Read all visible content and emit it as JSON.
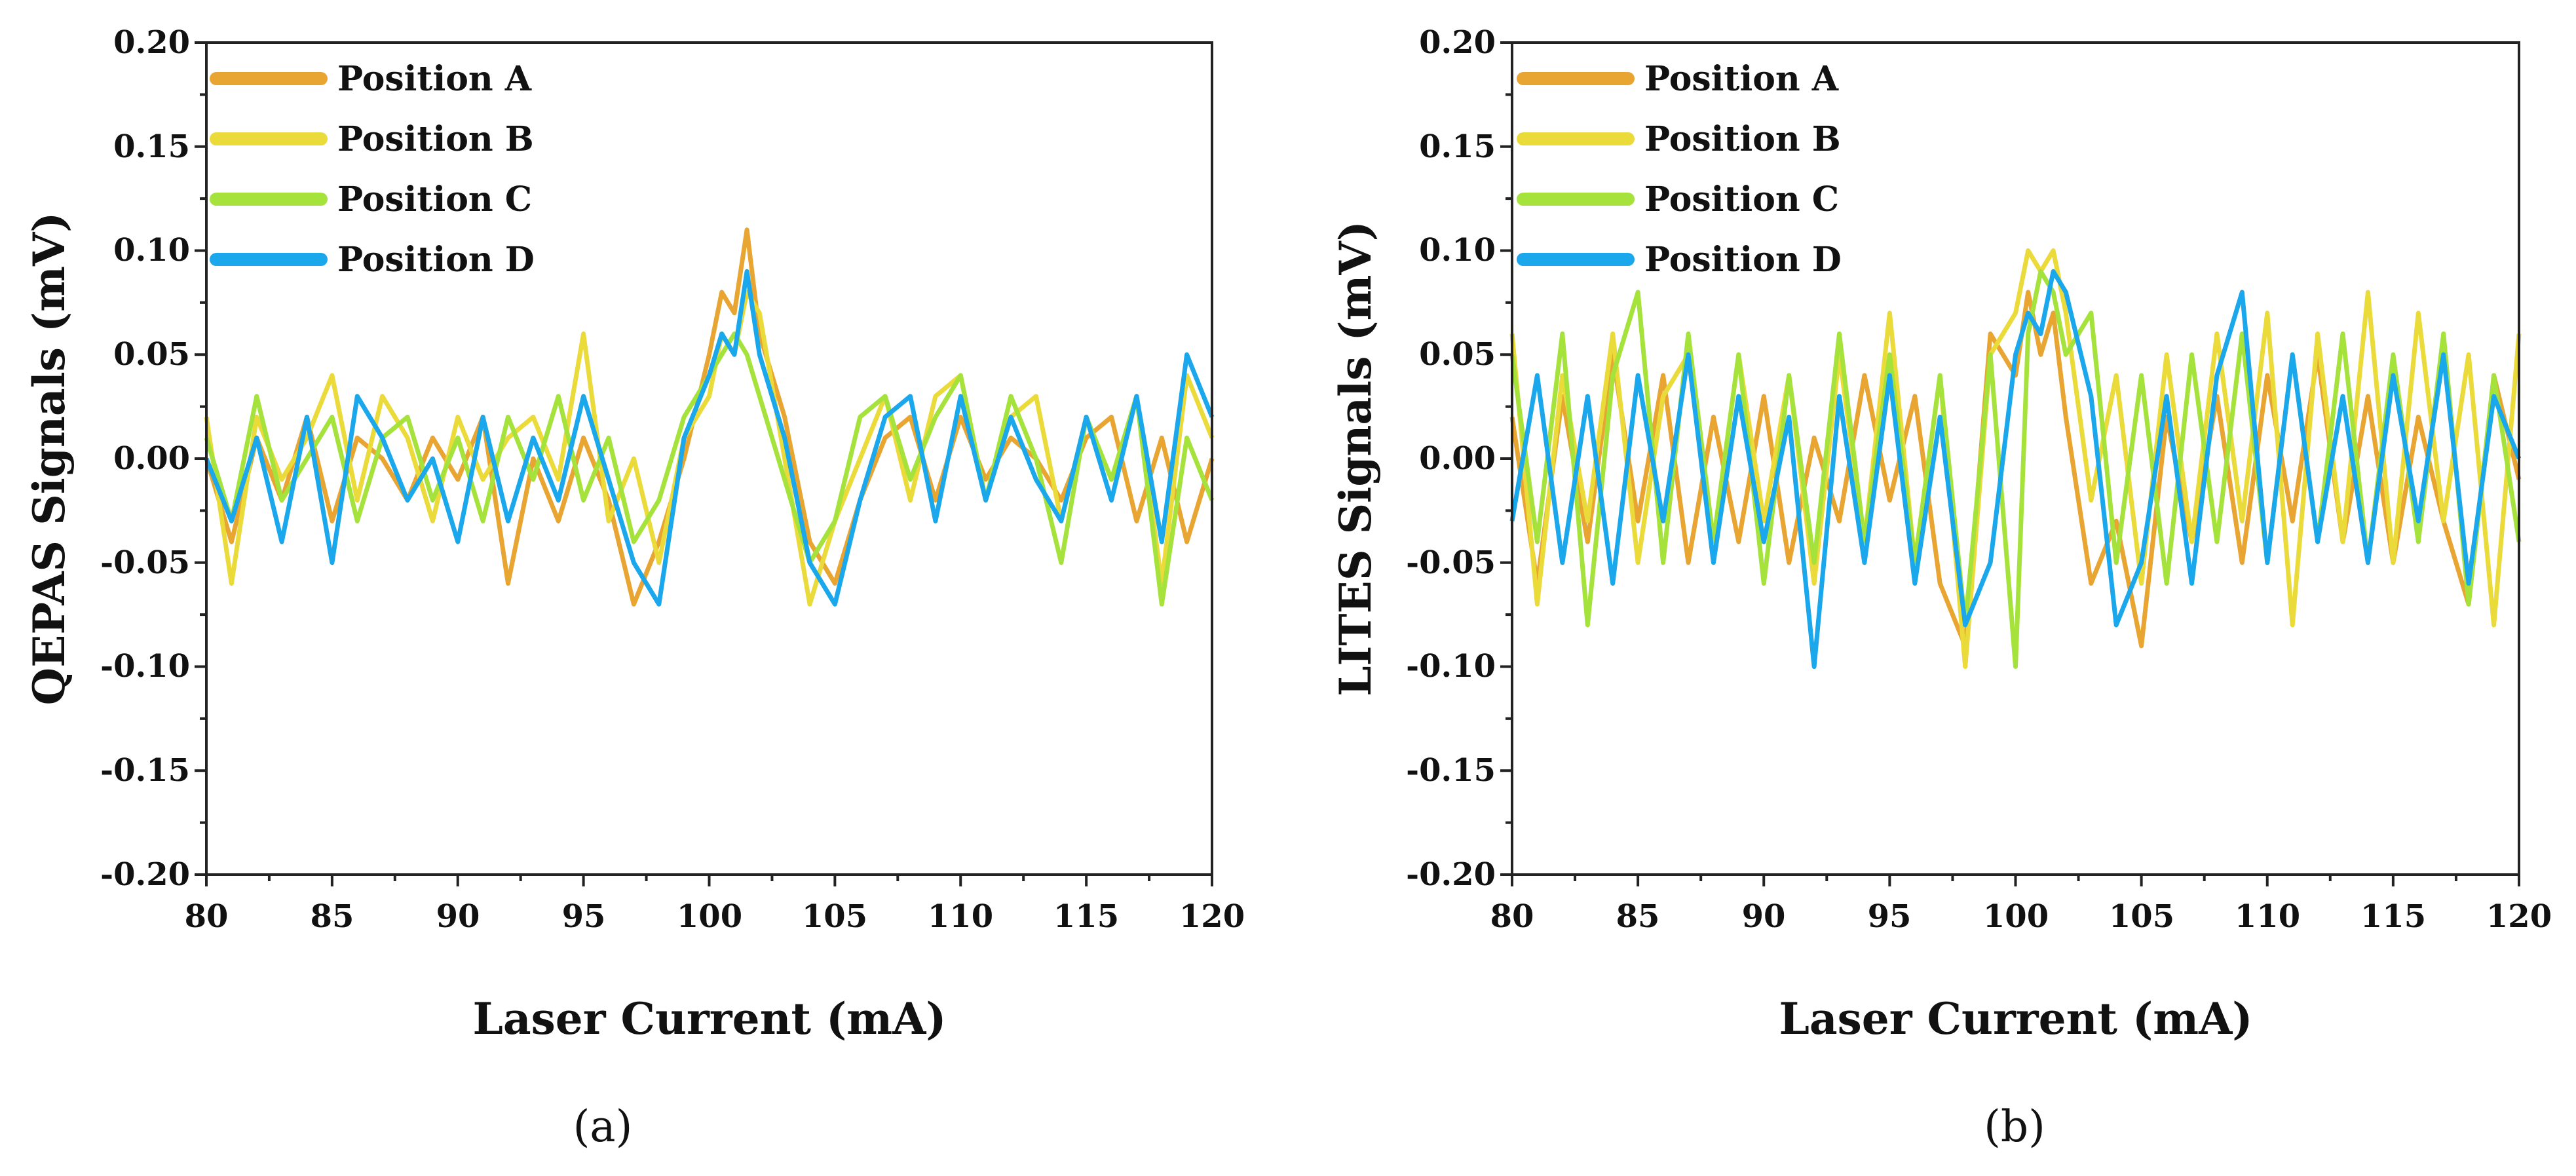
{
  "figure": {
    "colors": {
      "Position A": "#E8A531",
      "Position B": "#EBDB3A",
      "Position C": "#A6E23C",
      "Position D": "#1AA7EC"
    }
  },
  "chart_data": [
    {
      "type": "line",
      "panel_label": "(a)",
      "ylabel": "QEPAS Signals (mV)",
      "xlabel": "Laser Current (mA)",
      "xlim": [
        80,
        120
      ],
      "ylim": [
        -0.2,
        0.2
      ],
      "xticks": [
        "80",
        "85",
        "90",
        "95",
        "100",
        "105",
        "110",
        "115",
        "120"
      ],
      "yticks": [
        "0.20",
        "0.15",
        "0.10",
        "0.05",
        "0.00",
        "-0.05",
        "-0.10",
        "-0.15",
        "-0.20"
      ],
      "legend": {
        "placement": "top-left",
        "entries": [
          "Position A",
          "Position B",
          "Position C",
          "Position D"
        ]
      },
      "x": [
        80,
        81,
        82,
        83,
        84,
        85,
        86,
        87,
        88,
        89,
        90,
        91,
        92,
        93,
        94,
        95,
        96,
        97,
        98,
        99,
        100,
        100.5,
        101,
        101.5,
        102,
        103,
        104,
        105,
        106,
        107,
        108,
        109,
        110,
        111,
        112,
        113,
        114,
        115,
        116,
        117,
        118,
        119,
        120
      ],
      "series": [
        {
          "name": "Position A",
          "values": [
            0.0,
            -0.04,
            0.01,
            -0.02,
            0.02,
            -0.03,
            0.01,
            0.0,
            -0.02,
            0.01,
            -0.01,
            0.02,
            -0.06,
            0.0,
            -0.03,
            0.01,
            -0.02,
            -0.07,
            -0.04,
            0.0,
            0.05,
            0.08,
            0.07,
            0.11,
            0.06,
            0.02,
            -0.04,
            -0.06,
            -0.02,
            0.01,
            0.02,
            -0.02,
            0.02,
            -0.01,
            0.01,
            0.0,
            -0.02,
            0.01,
            0.02,
            -0.03,
            0.01,
            -0.04,
            0.0
          ]
        },
        {
          "name": "Position B",
          "values": [
            0.02,
            -0.06,
            0.02,
            -0.01,
            0.01,
            0.04,
            -0.02,
            0.03,
            0.01,
            -0.03,
            0.02,
            -0.01,
            0.01,
            0.02,
            -0.01,
            0.06,
            -0.03,
            0.0,
            -0.05,
            0.01,
            0.03,
            0.06,
            0.05,
            0.08,
            0.07,
            0.0,
            -0.07,
            -0.03,
            0.0,
            0.03,
            -0.02,
            0.03,
            0.04,
            -0.02,
            0.02,
            0.03,
            -0.03,
            0.02,
            -0.01,
            0.03,
            -0.06,
            0.04,
            0.01
          ]
        },
        {
          "name": "Position C",
          "values": [
            0.01,
            -0.03,
            0.03,
            -0.02,
            0.0,
            0.02,
            -0.03,
            0.01,
            0.02,
            -0.02,
            0.01,
            -0.03,
            0.02,
            -0.01,
            0.03,
            -0.02,
            0.01,
            -0.04,
            -0.02,
            0.02,
            0.04,
            0.05,
            0.06,
            0.05,
            0.03,
            -0.01,
            -0.05,
            -0.03,
            0.02,
            0.03,
            -0.01,
            0.02,
            0.04,
            -0.02,
            0.03,
            0.0,
            -0.05,
            0.02,
            -0.01,
            0.03,
            -0.07,
            0.01,
            -0.02
          ]
        },
        {
          "name": "Position D",
          "values": [
            0.0,
            -0.03,
            0.01,
            -0.04,
            0.02,
            -0.05,
            0.03,
            0.01,
            -0.02,
            0.0,
            -0.04,
            0.02,
            -0.03,
            0.01,
            -0.02,
            0.03,
            -0.01,
            -0.05,
            -0.07,
            0.01,
            0.04,
            0.06,
            0.05,
            0.09,
            0.05,
            0.01,
            -0.05,
            -0.07,
            -0.02,
            0.02,
            0.03,
            -0.03,
            0.03,
            -0.02,
            0.02,
            -0.01,
            -0.03,
            0.02,
            -0.02,
            0.03,
            -0.04,
            0.05,
            0.02
          ]
        }
      ]
    },
    {
      "type": "line",
      "panel_label": "(b)",
      "ylabel": "LITES Signals (mV)",
      "xlabel": "Laser Current (mA)",
      "xlim": [
        80,
        120
      ],
      "ylim": [
        -0.2,
        0.2
      ],
      "xticks": [
        "80",
        "85",
        "90",
        "95",
        "100",
        "105",
        "110",
        "115",
        "120"
      ],
      "yticks": [
        "0.20",
        "0.15",
        "0.10",
        "0.05",
        "0.00",
        "-0.05",
        "-0.10",
        "-0.15",
        "-0.20"
      ],
      "legend": {
        "placement": "top-left",
        "entries": [
          "Position A",
          "Position B",
          "Position C",
          "Position D"
        ]
      },
      "x": [
        80,
        81,
        82,
        83,
        84,
        85,
        86,
        87,
        88,
        89,
        90,
        91,
        92,
        93,
        94,
        95,
        96,
        97,
        98,
        99,
        100,
        100.5,
        101,
        101.5,
        102,
        103,
        104,
        105,
        106,
        107,
        108,
        109,
        110,
        111,
        112,
        113,
        114,
        115,
        116,
        117,
        118,
        119,
        120
      ],
      "series": [
        {
          "name": "Position A",
          "values": [
            0.02,
            -0.06,
            0.03,
            -0.04,
            0.05,
            -0.03,
            0.04,
            -0.05,
            0.02,
            -0.04,
            0.03,
            -0.05,
            0.01,
            -0.03,
            0.04,
            -0.02,
            0.03,
            -0.06,
            -0.09,
            0.06,
            0.04,
            0.08,
            0.05,
            0.07,
            0.02,
            -0.06,
            -0.03,
            -0.09,
            0.02,
            -0.04,
            0.03,
            -0.05,
            0.04,
            -0.03,
            0.05,
            -0.04,
            0.03,
            -0.05,
            0.02,
            -0.03,
            -0.07,
            0.04,
            -0.01
          ]
        },
        {
          "name": "Position B",
          "values": [
            0.06,
            -0.07,
            0.04,
            -0.03,
            0.06,
            -0.05,
            0.03,
            0.05,
            -0.04,
            0.05,
            -0.03,
            0.04,
            -0.06,
            0.05,
            -0.04,
            0.07,
            -0.05,
            0.04,
            -0.1,
            0.05,
            0.07,
            0.1,
            0.09,
            0.1,
            0.07,
            -0.02,
            0.04,
            -0.06,
            0.05,
            -0.04,
            0.06,
            -0.03,
            0.07,
            -0.08,
            0.06,
            -0.04,
            0.08,
            -0.05,
            0.07,
            -0.03,
            0.05,
            -0.08,
            0.06
          ]
        },
        {
          "name": "Position C",
          "values": [
            0.05,
            -0.04,
            0.06,
            -0.08,
            0.04,
            0.08,
            -0.05,
            0.06,
            -0.04,
            0.05,
            -0.06,
            0.04,
            -0.05,
            0.06,
            -0.04,
            0.05,
            -0.05,
            0.04,
            -0.08,
            0.05,
            -0.1,
            0.06,
            0.09,
            0.08,
            0.05,
            0.07,
            -0.05,
            0.04,
            -0.06,
            0.05,
            -0.04,
            0.06,
            -0.05,
            0.05,
            -0.04,
            0.06,
            -0.05,
            0.05,
            -0.04,
            0.06,
            -0.07,
            0.04,
            -0.04
          ]
        },
        {
          "name": "Position D",
          "values": [
            -0.03,
            0.04,
            -0.05,
            0.03,
            -0.06,
            0.04,
            -0.03,
            0.05,
            -0.05,
            0.03,
            -0.04,
            0.02,
            -0.1,
            0.03,
            -0.05,
            0.04,
            -0.06,
            0.02,
            -0.08,
            -0.05,
            0.05,
            0.07,
            0.06,
            0.09,
            0.08,
            0.03,
            -0.08,
            -0.05,
            0.03,
            -0.06,
            0.04,
            0.08,
            -0.05,
            0.05,
            -0.04,
            0.03,
            -0.05,
            0.04,
            -0.03,
            0.05,
            -0.06,
            0.03,
            0.0
          ]
        }
      ]
    }
  ]
}
